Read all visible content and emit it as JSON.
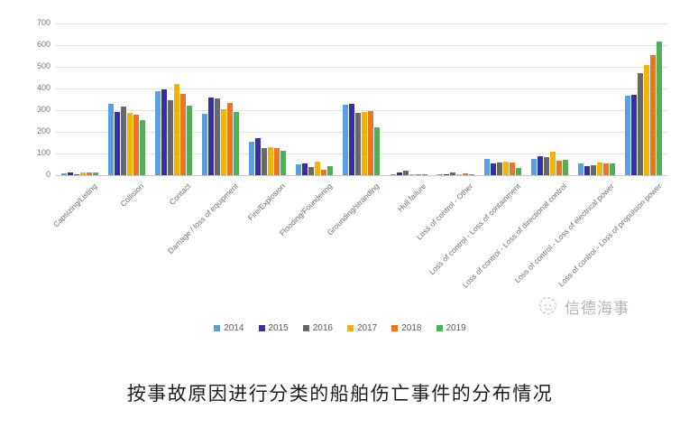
{
  "caption": "按事故原因进行分类的船舶伤亡事件的分布情况",
  "watermark": {
    "text": "信德海事"
  },
  "chart_data": {
    "type": "bar",
    "title": "",
    "xlabel": "",
    "ylabel": "",
    "ylim": [
      0,
      700
    ],
    "ytick_step": 100,
    "yticks": [
      0,
      100,
      200,
      300,
      400,
      500,
      600,
      700
    ],
    "grid": true,
    "legend_position": "bottom",
    "categories": [
      "Capsizing/Listing",
      "Collision",
      "Contact",
      "Damage / loss of equipment",
      "Fire/Explosion",
      "Flooding/Foundering",
      "Grounding/stranding",
      "Hull failure",
      "Loss of control - Other",
      "Loss of control - Loss of containment",
      "Loss of control - Loss of directional control",
      "Loss of control - Loss of electrical power",
      "Loss of control - Loss of propulsion power"
    ],
    "series": [
      {
        "name": "2014",
        "color": "#57a0e3",
        "values": [
          10,
          330,
          388,
          285,
          155,
          51,
          323,
          5,
          3,
          76,
          75,
          56,
          368
        ]
      },
      {
        "name": "2015",
        "color": "#34319e",
        "values": [
          14,
          290,
          396,
          360,
          170,
          55,
          328,
          13,
          4,
          56,
          88,
          41,
          370
        ]
      },
      {
        "name": "2016",
        "color": "#686868",
        "values": [
          6,
          318,
          345,
          353,
          125,
          36,
          286,
          22,
          12,
          60,
          82,
          44,
          470
        ]
      },
      {
        "name": "2017",
        "color": "#f3b300",
        "values": [
          11,
          287,
          420,
          306,
          128,
          61,
          291,
          5,
          5,
          63,
          108,
          60,
          508
        ]
      },
      {
        "name": "2018",
        "color": "#eb7524",
        "values": [
          13,
          278,
          375,
          335,
          125,
          25,
          295,
          6,
          7,
          60,
          68,
          53,
          553
        ]
      },
      {
        "name": "2019",
        "color": "#4fb155",
        "values": [
          12,
          253,
          319,
          293,
          113,
          41,
          221,
          4,
          2,
          35,
          72,
          54,
          617
        ]
      }
    ]
  }
}
